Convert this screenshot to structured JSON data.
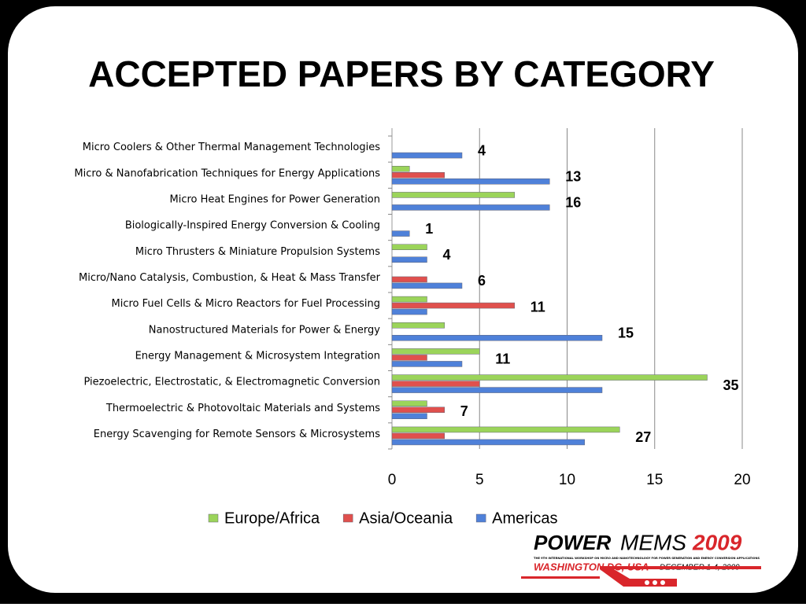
{
  "chart_data": {
    "type": "bar",
    "orientation": "horizontal",
    "title": "ACCEPTED PAPERS BY CATEGORY",
    "categories": [
      "Micro Coolers & Other Thermal Management Technologies",
      "Micro & Nanofabrication Techniques for Energy Applications",
      "Micro Heat Engines for Power Generation",
      "Biologically-Inspired Energy Conversion & Cooling",
      "Micro Thrusters & Miniature Propulsion Systems",
      "Micro/Nano Catalysis, Combustion, & Heat & Mass Transfer",
      "Micro Fuel Cells & Micro Reactors for Fuel Processing",
      "Nanostructured Materials for Power & Energy",
      "Energy Management & Microsystem Integration",
      "Piezoelectric, Electrostatic, & Electromagnetic Conversion",
      "Thermoelectric & Photovoltaic Materials and Systems",
      "Energy Scavenging for Remote Sensors & Microsystems"
    ],
    "series": [
      {
        "name": "Europe/Africa",
        "color": "#9bd45a",
        "values": [
          0,
          1,
          7,
          0,
          2,
          0,
          2,
          3,
          5,
          18,
          2,
          13
        ]
      },
      {
        "name": "Asia/Oceania",
        "color": "#e0504d",
        "values": [
          0,
          3,
          0,
          0,
          0,
          2,
          7,
          0,
          2,
          5,
          3,
          3
        ]
      },
      {
        "name": "Americas",
        "color": "#4f81d9",
        "values": [
          4,
          9,
          9,
          1,
          2,
          4,
          2,
          12,
          4,
          12,
          2,
          11
        ]
      }
    ],
    "totals": [
      4,
      13,
      16,
      1,
      4,
      6,
      11,
      15,
      11,
      35,
      7,
      27
    ],
    "xlim": [
      0,
      20
    ],
    "xticks": [
      0,
      5,
      10,
      15,
      20
    ],
    "grid": true,
    "legend": "bottom"
  },
  "logo": {
    "power": "POWER",
    "mems": "MEMS",
    "year": "2009",
    "tagline": "THE 9TH INTERNATIONAL WORKSHOP ON MICRO AND NANOTECHNOLOGY FOR POWER GENERATION AND ENERGY CONVERSION APPLICATIONS",
    "place": "WASHINGTON DC, USA",
    "dates": "DECEMBER 1-4, 2009"
  }
}
